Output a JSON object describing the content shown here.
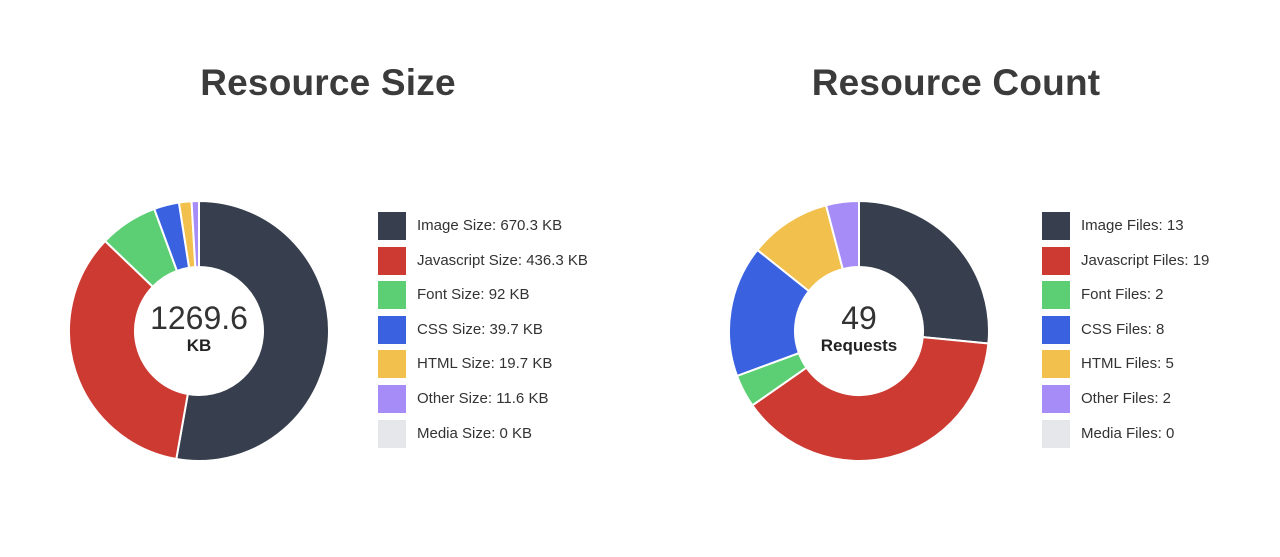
{
  "chart_data": [
    {
      "type": "donut",
      "title": "Resource Size",
      "center_value": "1269.6",
      "center_unit": "KB",
      "categories": [
        "Image Size",
        "Javascript Size",
        "Font Size",
        "CSS Size",
        "HTML Size",
        "Other Size",
        "Media Size"
      ],
      "values": [
        670.3,
        436.3,
        92,
        39.7,
        19.7,
        11.6,
        0
      ],
      "legend_labels": [
        "Image Size: 670.3 KB",
        "Javascript Size: 436.3 KB",
        "Font Size: 92 KB",
        "CSS Size: 39.7 KB",
        "HTML Size: 19.7 KB",
        "Other Size: 11.6 KB",
        "Media Size: 0 KB"
      ],
      "colors": [
        "#373f4e",
        "#cc3a32",
        "#5ccf74",
        "#3a62e0",
        "#f2c14d",
        "#a58cf6",
        "#e5e7eb"
      ],
      "legend": "right"
    },
    {
      "type": "donut",
      "title": "Resource Count",
      "center_value": "49",
      "center_unit": "Requests",
      "categories": [
        "Image Files",
        "Javascript Files",
        "Font Files",
        "CSS Files",
        "HTML Files",
        "Other Files",
        "Media Files"
      ],
      "values": [
        13,
        19,
        2,
        8,
        5,
        2,
        0
      ],
      "legend_labels": [
        "Image Files: 13",
        "Javascript Files: 19",
        "Font Files: 2",
        "CSS Files: 8",
        "HTML Files: 5",
        "Other Files: 2",
        "Media Files: 0"
      ],
      "colors": [
        "#373f4e",
        "#cc3a32",
        "#5ccf74",
        "#3a62e0",
        "#f2c14d",
        "#a58cf6",
        "#e5e7eb"
      ],
      "legend": "right"
    }
  ]
}
